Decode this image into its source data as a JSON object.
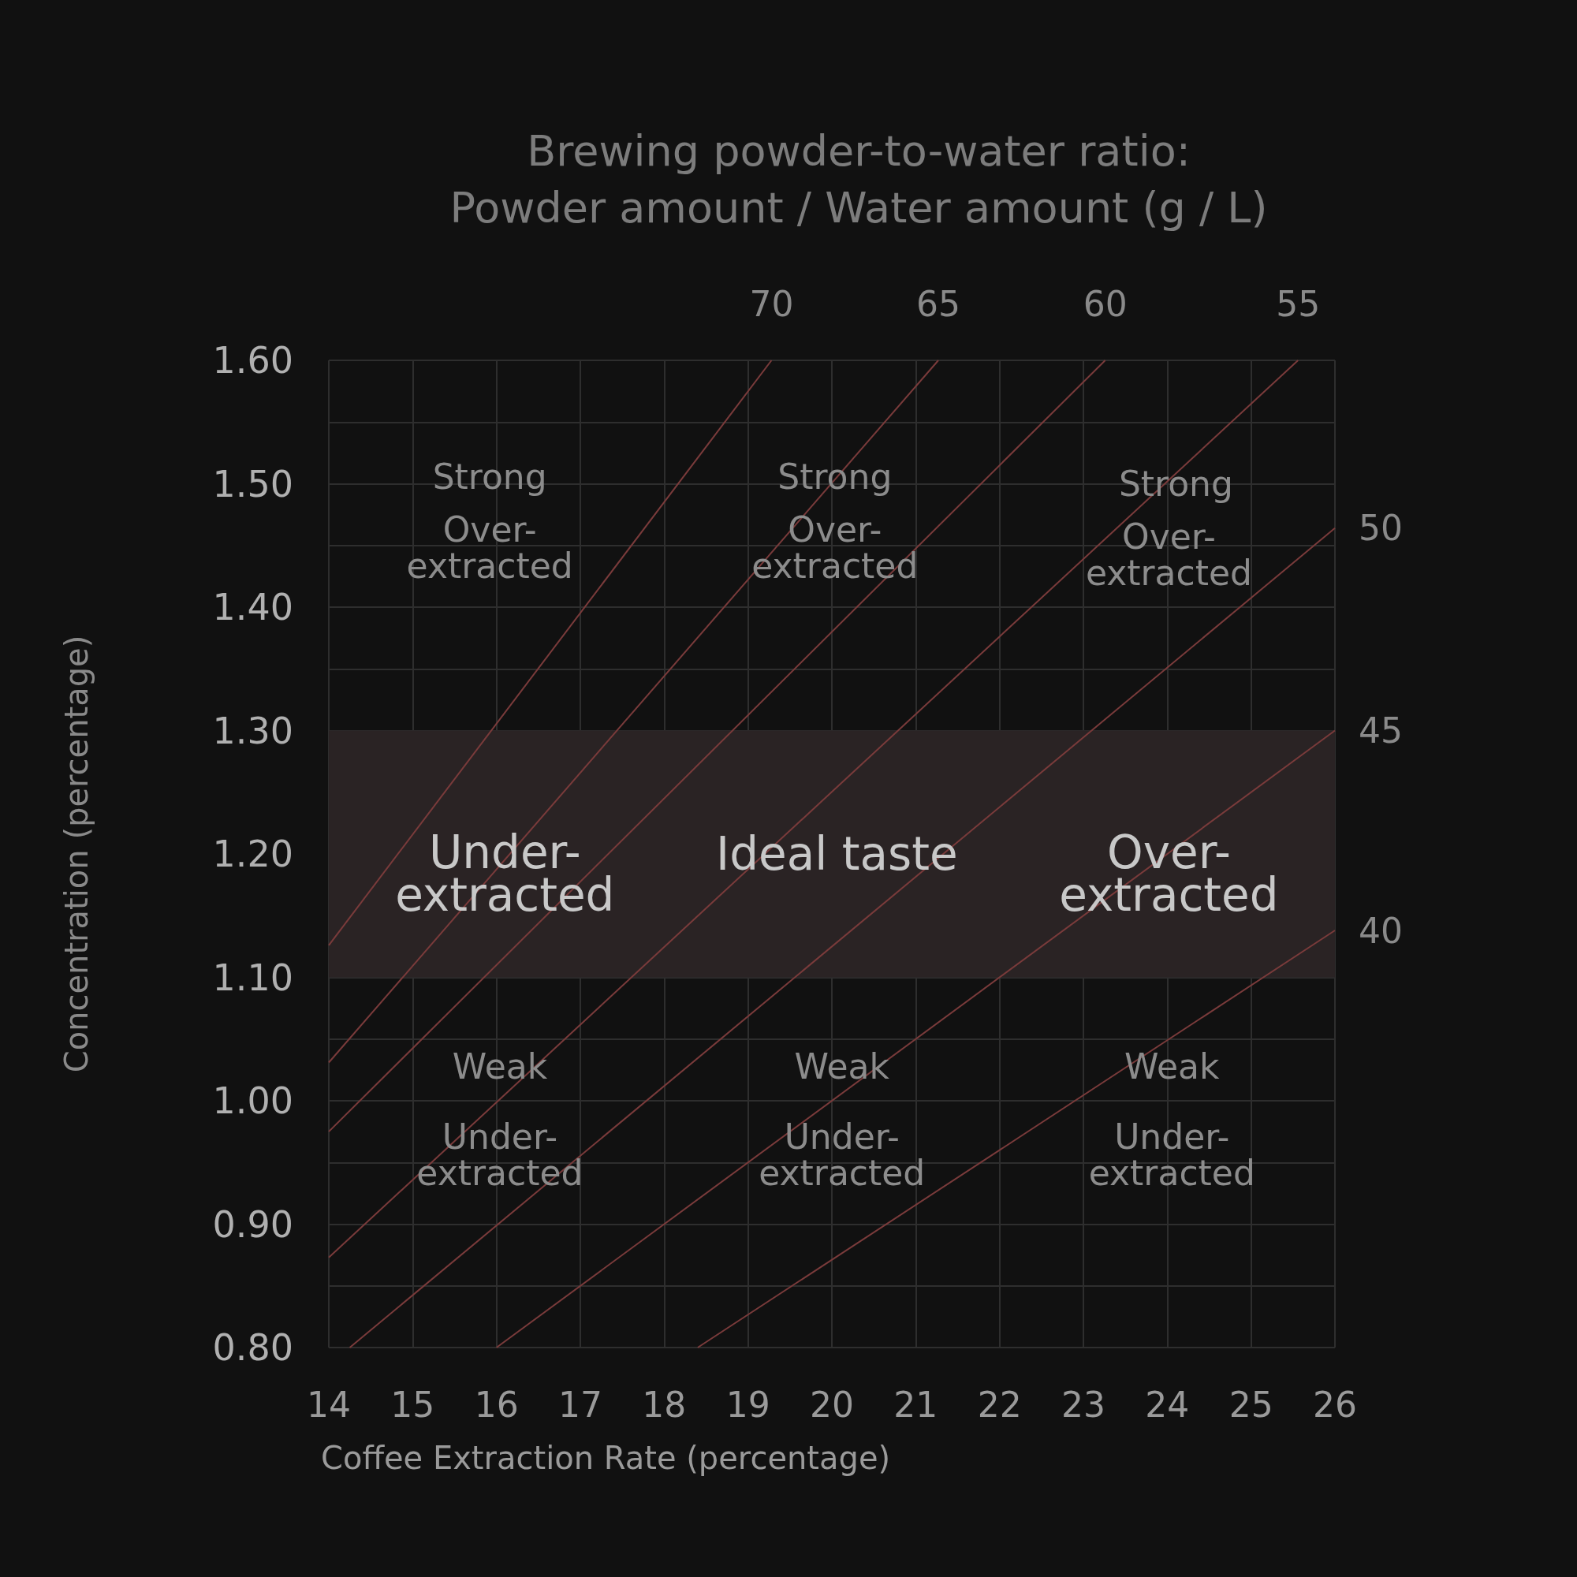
{
  "chart_data": {
    "type": "line",
    "title": "Brewing powder-to-water ratio:\nPowder amount / Water amount (g / L)",
    "xlabel": "Coffee Extraction Rate (percentage)",
    "ylabel": "Concentration (percentage)",
    "xlim": [
      14,
      26
    ],
    "xticks": [
      14,
      15,
      16,
      17,
      18,
      19,
      20,
      21,
      22,
      23,
      24,
      25,
      26
    ],
    "ylim": [
      0.8,
      1.6
    ],
    "yticks": [
      {
        "value": 0.8,
        "label": "0.80"
      },
      {
        "value": 0.85,
        "label": null
      },
      {
        "value": 0.9,
        "label": "0.90"
      },
      {
        "value": 0.95,
        "label": null
      },
      {
        "value": 1.0,
        "label": "1.00"
      },
      {
        "value": 1.05,
        "label": null
      },
      {
        "value": 1.1,
        "label": "1.10"
      },
      {
        "value": 1.2,
        "label": "1.20"
      },
      {
        "value": 1.3,
        "label": "1.30"
      },
      {
        "value": 1.35,
        "label": null
      },
      {
        "value": 1.4,
        "label": "1.40"
      },
      {
        "value": 1.45,
        "label": null
      },
      {
        "value": 1.5,
        "label": "1.50"
      },
      {
        "value": 1.55,
        "label": null
      },
      {
        "value": 1.6,
        "label": "1.60"
      }
    ],
    "grid": true,
    "marker": "none",
    "line_style": "solid",
    "legend": false,
    "series": [
      {
        "name": "70",
        "color": "#7a3b3b",
        "x": [
          14,
          19.28
        ],
        "values": [
          1.126,
          1.6
        ]
      },
      {
        "name": "65",
        "color": "#7a3b3b",
        "x": [
          14,
          21.27
        ],
        "values": [
          1.031,
          1.6
        ]
      },
      {
        "name": "60",
        "color": "#7a3b3b",
        "x": [
          14,
          23.26
        ],
        "values": [
          0.975,
          1.6
        ]
      },
      {
        "name": "55",
        "color": "#7a3b3b",
        "x": [
          14,
          25.56
        ],
        "values": [
          0.873,
          1.6
        ]
      },
      {
        "name": "50",
        "color": "#7a3b3b",
        "x": [
          14.25,
          26
        ],
        "values": [
          0.8,
          1.464
        ]
      },
      {
        "name": "45",
        "color": "#7a3b3b",
        "x": [
          16,
          26
        ],
        "values": [
          0.8,
          1.3
        ]
      },
      {
        "name": "40",
        "color": "#7a3b3b",
        "x": [
          18.4,
          22,
          26
        ],
        "values": [
          0.8,
          0.96,
          1.138
        ]
      }
    ],
    "bands": [
      {
        "axis": "y",
        "from": 1.1,
        "to": 1.3,
        "color": "#2a2324"
      }
    ],
    "annotations": [
      "Strong",
      "Over-\nextracted",
      "Strong",
      "Over-\nextracted",
      "Strong",
      "Over-\nextracted",
      "Under-\nextracted",
      "Ideal taste",
      "Over-\nextracted",
      "Weak",
      "Under-\nextracted",
      "Weak",
      "Under-\nextracted",
      "Weak",
      "Under-\nextracted"
    ]
  }
}
